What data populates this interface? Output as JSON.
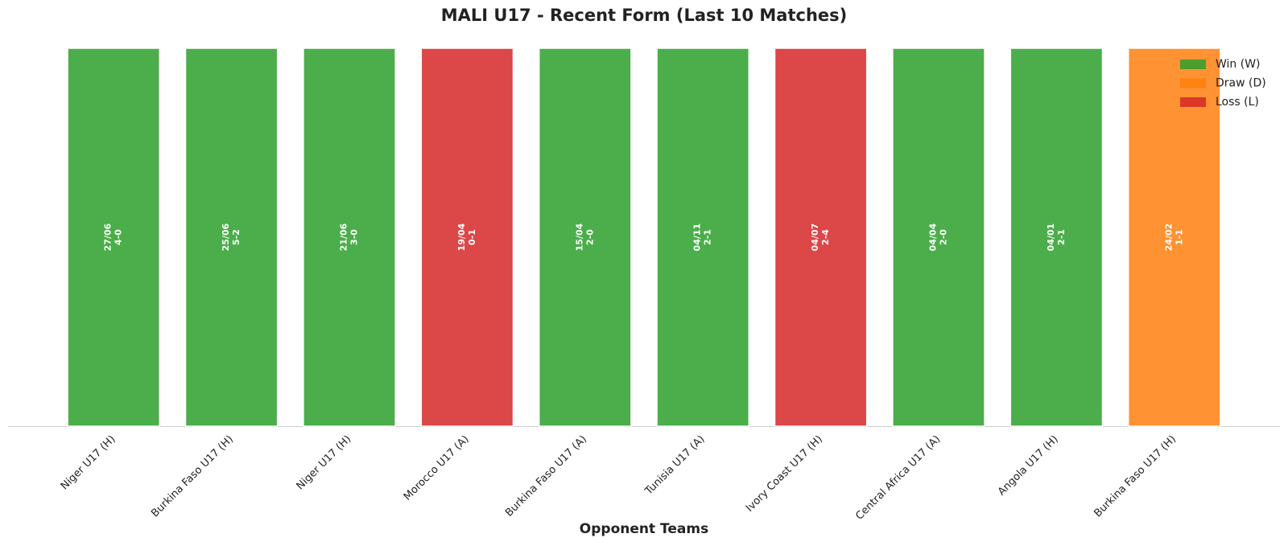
{
  "chart_data": {
    "type": "bar",
    "title": "MALI U17 - Recent Form (Last 10 Matches)",
    "xlabel": "Opponent Teams",
    "categories": [
      "Niger U17 (H)",
      "Burkina Faso U17 (H)",
      "Niger U17 (H)",
      "Morocco U17 (A)",
      "Burkina Faso U17 (A)",
      "Tunisia U17 (A)",
      "Ivory Coast U17 (H)",
      "Central Africa U17 (A)",
      "Angola U17 (H)",
      "Burkina Faso U17 (H)"
    ],
    "values": [
      1,
      1,
      1,
      1,
      1,
      1,
      1,
      1,
      1,
      1
    ],
    "dates": [
      "27/06",
      "25/06",
      "21/06",
      "19/04",
      "15/04",
      "04/11",
      "04/07",
      "04/04",
      "04/01",
      "24/02"
    ],
    "scores": [
      "4-0",
      "5-2",
      "3-0",
      "0-1",
      "2-0",
      "2-1",
      "2-4",
      "2-0",
      "2-1",
      "1-1"
    ],
    "bar_colors": [
      "#2ca02c",
      "#2ca02c",
      "#2ca02c",
      "#d62728",
      "#2ca02c",
      "#2ca02c",
      "#d62728",
      "#2ca02c",
      "#2ca02c",
      "#ff7f0e"
    ],
    "legend": [
      {
        "name": "Win (W)",
        "color": "#2ca02c"
      },
      {
        "name": "Draw (D)",
        "color": "#ff7f0e"
      },
      {
        "name": "Loss (L)",
        "color": "#d62728"
      }
    ],
    "legend_position": "upper right",
    "ylim": [
      0,
      1
    ]
  }
}
